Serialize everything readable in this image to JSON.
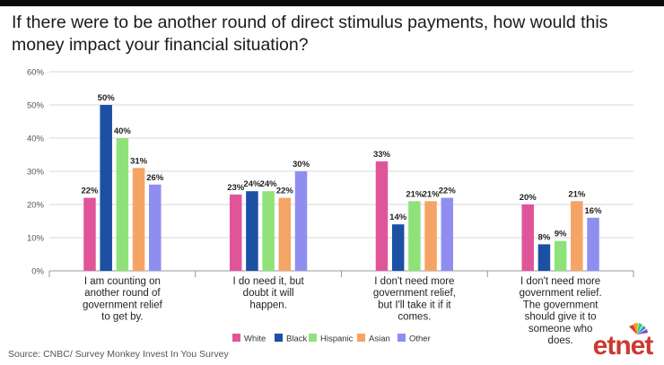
{
  "title": "If there were to be another round of direct stimulus payments, how would this money impact your financial situation?",
  "source": "Source: CNBC/ Survey Monkey Invest In You Survey",
  "logo": {
    "text": "etnet",
    "icon": "peacock-logo-icon"
  },
  "chart_data": {
    "type": "bar",
    "title": "If there were to be another round of direct stimulus payments, how would this money impact your financial situation?",
    "xlabel": "",
    "ylabel": "",
    "ylim": [
      0,
      60
    ],
    "yticks": [
      "0%",
      "10%",
      "20%",
      "30%",
      "40%",
      "50%",
      "60%"
    ],
    "grid": true,
    "legend_position": "bottom",
    "categories": [
      [
        "I am counting on",
        "another round of",
        "government relief",
        "to get by."
      ],
      [
        "I do need it, but",
        "doubt it will",
        "happen."
      ],
      [
        "I don't need more",
        "government relief,",
        "but I'll take it if it",
        "comes."
      ],
      [
        "I don't need more",
        "government relief.",
        "The government",
        "should give it to",
        "someone who",
        "does."
      ]
    ],
    "series": [
      {
        "name": "White",
        "color": "#e0559a",
        "values": [
          22,
          23,
          33,
          20
        ]
      },
      {
        "name": "Black",
        "color": "#1b50a3",
        "values": [
          50,
          24,
          14,
          8
        ]
      },
      {
        "name": "Hispanic",
        "color": "#8fe27a",
        "values": [
          40,
          24,
          21,
          9
        ]
      },
      {
        "name": "Asian",
        "color": "#f5a466",
        "values": [
          31,
          22,
          21,
          21
        ]
      },
      {
        "name": "Other",
        "color": "#8f8ef0",
        "values": [
          26,
          30,
          22,
          16
        ]
      }
    ]
  }
}
